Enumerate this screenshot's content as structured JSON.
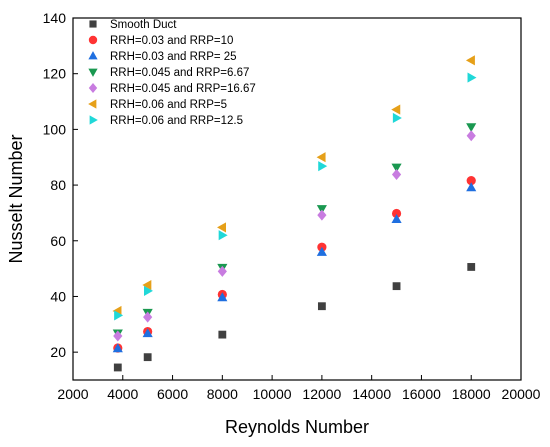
{
  "chart_data": {
    "type": "scatter",
    "xlabel": "Reynolds Number",
    "ylabel": "Nusselt Number",
    "xlim": [
      2000,
      20000
    ],
    "ylim": [
      10,
      140
    ],
    "xticks": [
      2000,
      4000,
      6000,
      8000,
      10000,
      12000,
      14000,
      16000,
      18000,
      20000
    ],
    "yticks": [
      20,
      40,
      60,
      80,
      100,
      120,
      140
    ],
    "grid": false,
    "legend_position": "top-left",
    "series": [
      {
        "name": "Smooth Duct",
        "marker": "square",
        "color": "#404040",
        "x": [
          3800,
          5000,
          8000,
          12000,
          15000,
          18000
        ],
        "y": [
          14.5,
          18.2,
          26.3,
          36.5,
          43.7,
          50.6
        ]
      },
      {
        "name": "RRH=0.03 and RRP=10",
        "marker": "circle",
        "color": "#ff3333",
        "x": [
          3800,
          5000,
          8000,
          12000,
          15000,
          18000
        ],
        "y": [
          21.5,
          27.4,
          40.7,
          57.7,
          69.8,
          81.6
        ]
      },
      {
        "name": "RRH=0.03 and RRP= 25",
        "marker": "triangle-up",
        "color": "#1f6fe0",
        "x": [
          3800,
          5000,
          8000,
          12000,
          15000,
          18000
        ],
        "y": [
          21.3,
          26.7,
          39.6,
          55.9,
          67.7,
          79.1
        ]
      },
      {
        "name": "RRH=0.045 and RRP=6.67",
        "marker": "triangle-down",
        "color": "#1a9850",
        "x": [
          3800,
          5000,
          8000,
          12000,
          15000,
          18000
        ],
        "y": [
          26.8,
          34.2,
          50.4,
          71.5,
          86.4,
          100.9
        ]
      },
      {
        "name": "RRH=0.045 and RRP=16.67",
        "marker": "diamond",
        "color": "#c87ce0",
        "x": [
          3800,
          5000,
          8000,
          12000,
          15000,
          18000
        ],
        "y": [
          25.8,
          32.6,
          49.0,
          69.2,
          83.8,
          97.7
        ]
      },
      {
        "name": "RRH=0.06 and RRP=5",
        "marker": "triangle-left",
        "color": "#e6a019",
        "x": [
          3800,
          5000,
          8000,
          12000,
          15000,
          18000
        ],
        "y": [
          34.8,
          44.1,
          64.8,
          90.0,
          107.1,
          124.8
        ]
      },
      {
        "name": "RRH=0.06 and RRP=12.5",
        "marker": "triangle-right",
        "color": "#20d8d8",
        "x": [
          3800,
          5000,
          8000,
          12000,
          15000,
          18000
        ],
        "y": [
          33.2,
          42.0,
          62.0,
          86.8,
          104.1,
          118.6
        ]
      }
    ]
  }
}
